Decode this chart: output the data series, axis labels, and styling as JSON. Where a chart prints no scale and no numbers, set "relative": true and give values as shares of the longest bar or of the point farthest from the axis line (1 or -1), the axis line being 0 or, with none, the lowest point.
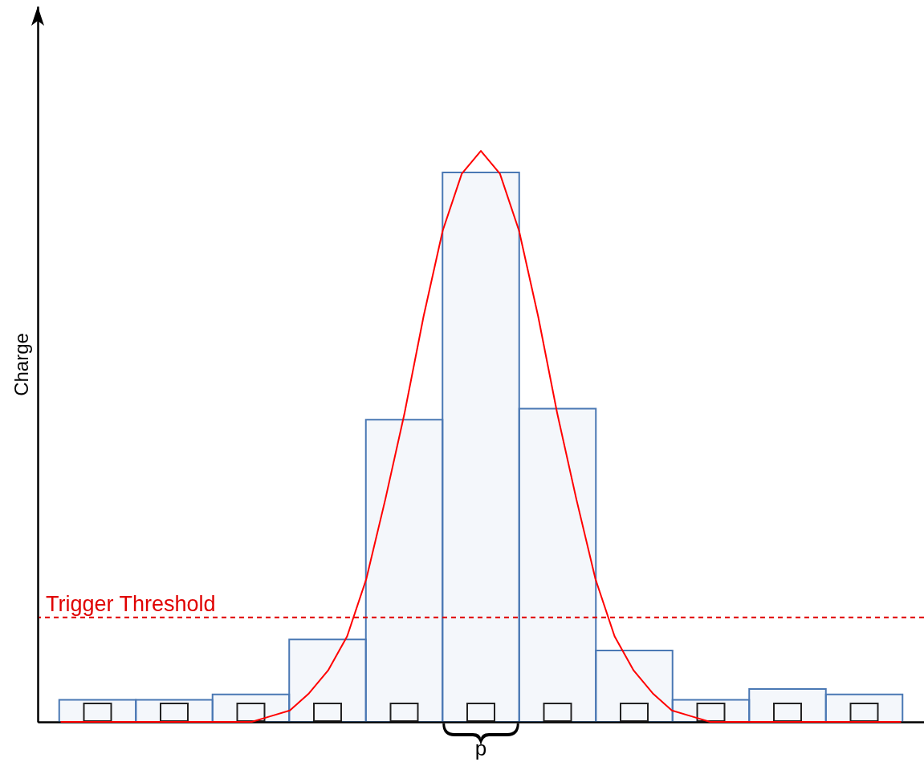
{
  "chart_data": [
    {
      "type": "bar",
      "relative": true,
      "ylabel": "Charge",
      "color": "#4a78b4",
      "categories": [
        null,
        null,
        null,
        null,
        null,
        null,
        null,
        null,
        null,
        null,
        null
      ],
      "values": [
        0.04,
        0.04,
        0.05,
        0.15,
        0.55,
        1,
        0.57,
        0.13,
        0.04,
        0.06,
        0.05
      ],
      "ref_lines": [
        {
          "axis": "y",
          "value": 0.19,
          "label": "Trigger Threshold",
          "color": "#e00000",
          "line_style": "dashed"
        }
      ],
      "annotations": [
        "p"
      ]
    },
    {
      "type": "line",
      "relative": true,
      "color": "#ff0000",
      "categories": [
        null,
        null,
        null,
        null,
        null,
        null,
        null,
        null,
        null,
        null,
        null,
        null,
        null,
        null,
        null,
        null,
        null,
        null,
        null,
        null,
        null,
        null,
        null,
        null,
        null,
        null,
        null,
        null,
        null,
        null,
        null,
        null,
        null,
        null,
        null,
        null,
        null,
        null,
        null,
        null,
        null,
        null,
        null,
        null,
        null
      ],
      "values": [
        0,
        0,
        0,
        0,
        0,
        0,
        0,
        0,
        0,
        0,
        0,
        0.01,
        0.02,
        0.05,
        0.09,
        0.15,
        0.25,
        0.39,
        0.54,
        0.71,
        0.86,
        0.96,
        1,
        0.96,
        0.86,
        0.71,
        0.54,
        0.39,
        0.25,
        0.15,
        0.09,
        0.05,
        0.02,
        0.01,
        0,
        0,
        0,
        0,
        0,
        0,
        0,
        0,
        0,
        0,
        0
      ]
    }
  ]
}
